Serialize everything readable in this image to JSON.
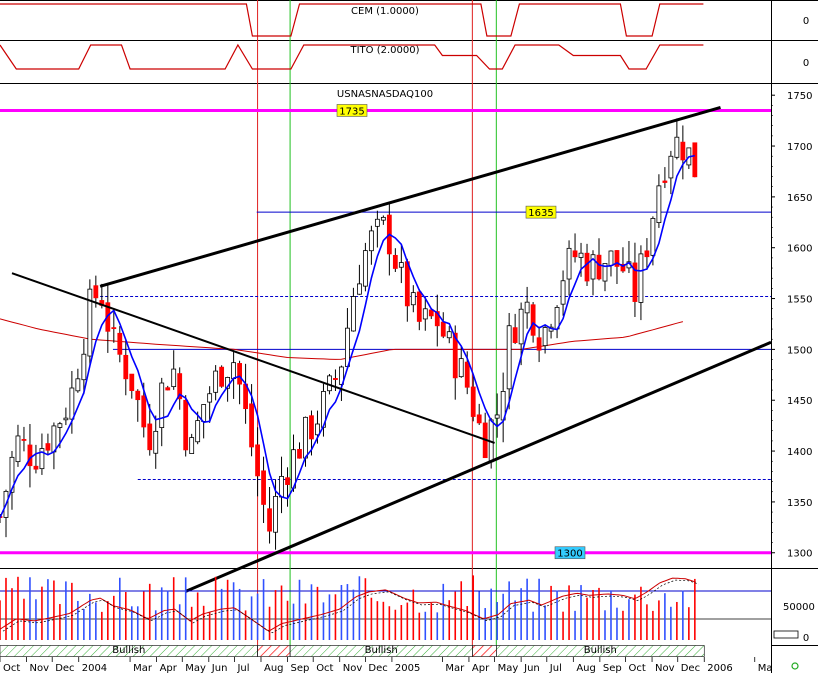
{
  "colors": {
    "background": "#ffffff",
    "up_candle": "#ffffff",
    "down_candle": "#ff0000",
    "ma_short": "#0000ff",
    "ma_long": "#cc0000",
    "indicator_line": "#cc0000",
    "magenta_level": "#ff00ff",
    "blue_level": "#0000cc",
    "vline_red": "#e02020",
    "vline_green": "#20c020",
    "trend_line": "#000000",
    "level_label_yellow": "#ffff00",
    "level_label_cyan": "#33ccff",
    "bullish_fill": "#ffffff",
    "bearish_hatch": "#ff0000"
  },
  "chart_data": [
    {
      "type": "line",
      "title": "CEM (1.0000)",
      "yticks": [
        0
      ],
      "ylim": [
        -1,
        1
      ],
      "series": [
        {
          "name": "CEM",
          "x": [
            "2003-10-01",
            "2004-07-15",
            "2004-07-22",
            "2004-09-05",
            "2004-09-15",
            "2005-04-15",
            "2005-04-22",
            "2005-05-20",
            "2005-05-30",
            "2005-09-25",
            "2005-10-02",
            "2005-11-01",
            "2005-11-10",
            "2005-12-31"
          ],
          "values": [
            1,
            1,
            -1,
            -1,
            1,
            1,
            -1,
            -1,
            1,
            1,
            -1,
            -1,
            1,
            1
          ]
        }
      ]
    },
    {
      "type": "line",
      "title": "TITO (2.0000)",
      "yticks": [
        0
      ],
      "ylim": [
        -1,
        1
      ],
      "series": [
        {
          "name": "TITO",
          "x": [
            "2003-10-01",
            "2003-10-20",
            "2003-11-01",
            "2004-01-01",
            "2004-01-15",
            "2004-02-20",
            "2004-03-01",
            "2004-06-20",
            "2004-07-05",
            "2004-07-22",
            "2004-09-05",
            "2004-09-20",
            "2004-10-10",
            "2005-02-20",
            "2005-03-01",
            "2005-04-10",
            "2005-04-25",
            "2005-05-10",
            "2005-05-25",
            "2005-07-15",
            "2005-08-01",
            "2005-09-25",
            "2005-10-05",
            "2005-10-25",
            "2005-11-10",
            "2005-12-31"
          ],
          "values": [
            1,
            -0.6,
            -0.6,
            -0.6,
            1,
            1,
            -0.6,
            -0.6,
            1,
            -0.6,
            -0.6,
            1,
            1,
            1,
            0.3,
            0.3,
            -0.6,
            -0.6,
            1,
            1,
            0.3,
            0.3,
            -0.6,
            -0.6,
            1,
            1
          ]
        }
      ]
    },
    {
      "type": "line",
      "title": "USNASNASDAQ100",
      "yticks": [
        1300,
        1350,
        1400,
        1450,
        1500,
        1550,
        1600,
        1650,
        1700,
        1750
      ],
      "ylim": [
        1285,
        1762
      ],
      "date_range": [
        "2003-10-01",
        "2006-03-20"
      ],
      "xlabels": [
        {
          "date": "2003-10-01",
          "label": "Oct"
        },
        {
          "date": "2003-11-01",
          "label": "Nov"
        },
        {
          "date": "2003-12-01",
          "label": "Dec"
        },
        {
          "date": "2004-01-01",
          "label": "2004"
        },
        {
          "date": "2004-03-01",
          "label": "Mar"
        },
        {
          "date": "2004-04-01",
          "label": "Apr"
        },
        {
          "date": "2004-05-01",
          "label": "May"
        },
        {
          "date": "2004-06-01",
          "label": "Jun"
        },
        {
          "date": "2004-07-01",
          "label": "Jul"
        },
        {
          "date": "2004-08-01",
          "label": "Aug"
        },
        {
          "date": "2004-09-01",
          "label": "Sep"
        },
        {
          "date": "2004-10-01",
          "label": "Oct"
        },
        {
          "date": "2004-11-01",
          "label": "Nov"
        },
        {
          "date": "2004-12-01",
          "label": "Dec"
        },
        {
          "date": "2005-01-01",
          "label": "2005"
        },
        {
          "date": "2005-03-01",
          "label": "Mar"
        },
        {
          "date": "2005-04-01",
          "label": "Apr"
        },
        {
          "date": "2005-05-01",
          "label": "May"
        },
        {
          "date": "2005-06-01",
          "label": "Jun"
        },
        {
          "date": "2005-07-01",
          "label": "Jul"
        },
        {
          "date": "2005-08-01",
          "label": "Aug"
        },
        {
          "date": "2005-09-01",
          "label": "Sep"
        },
        {
          "date": "2005-10-01",
          "label": "Oct"
        },
        {
          "date": "2005-11-01",
          "label": "Nov"
        },
        {
          "date": "2005-12-01",
          "label": "Dec"
        },
        {
          "date": "2006-01-01",
          "label": "2006"
        },
        {
          "date": "2006-03-01",
          "label": "Ma"
        }
      ],
      "price_anchors": [
        [
          "2003-10-01",
          1335
        ],
        [
          "2003-10-20",
          1410
        ],
        [
          "2003-11-10",
          1395
        ],
        [
          "2003-12-01",
          1420
        ],
        [
          "2003-12-22",
          1450
        ],
        [
          "2004-01-15",
          1545
        ],
        [
          "2004-01-26",
          1560
        ],
        [
          "2004-02-10",
          1505
        ],
        [
          "2004-03-01",
          1475
        ],
        [
          "2004-03-22",
          1410
        ],
        [
          "2004-04-10",
          1470
        ],
        [
          "2004-04-22",
          1480
        ],
        [
          "2004-05-10",
          1395
        ],
        [
          "2004-05-25",
          1445
        ],
        [
          "2004-06-15",
          1480
        ],
        [
          "2004-07-01",
          1490
        ],
        [
          "2004-07-20",
          1410
        ],
        [
          "2004-08-10",
          1320
        ],
        [
          "2004-08-25",
          1375
        ],
        [
          "2004-09-15",
          1405
        ],
        [
          "2004-10-10",
          1440
        ],
        [
          "2004-11-01",
          1480
        ],
        [
          "2004-11-20",
          1570
        ],
        [
          "2004-12-05",
          1605
        ],
        [
          "2004-12-25",
          1620
        ],
        [
          "2005-01-15",
          1560
        ],
        [
          "2005-02-01",
          1525
        ],
        [
          "2005-02-22",
          1530
        ],
        [
          "2005-03-10",
          1500
        ],
        [
          "2005-03-28",
          1470
        ],
        [
          "2005-04-18",
          1410
        ],
        [
          "2005-05-05",
          1440
        ],
        [
          "2005-05-20",
          1520
        ],
        [
          "2005-06-10",
          1545
        ],
        [
          "2005-06-25",
          1510
        ],
        [
          "2005-07-20",
          1575
        ],
        [
          "2005-08-05",
          1595
        ],
        [
          "2005-08-20",
          1580
        ],
        [
          "2005-09-10",
          1590
        ],
        [
          "2005-09-28",
          1580
        ],
        [
          "2005-10-12",
          1555
        ],
        [
          "2005-10-25",
          1600
        ],
        [
          "2005-11-10",
          1670
        ],
        [
          "2005-11-25",
          1705
        ],
        [
          "2005-12-10",
          1700
        ],
        [
          "2005-12-25",
          1670
        ]
      ],
      "moving_average_long": [
        [
          "2003-10-01",
          1530
        ],
        [
          "2003-11-15",
          1520
        ],
        [
          "2004-01-15",
          1510
        ],
        [
          "2004-04-01",
          1505
        ],
        [
          "2004-07-01",
          1500
        ],
        [
          "2004-09-01",
          1492
        ],
        [
          "2004-11-01",
          1490
        ],
        [
          "2005-01-01",
          1500
        ],
        [
          "2005-03-01",
          1500
        ],
        [
          "2005-06-01",
          1500
        ],
        [
          "2005-08-01",
          1508
        ],
        [
          "2005-10-01",
          1512
        ],
        [
          "2005-12-10",
          1528
        ]
      ],
      "levels": [
        {
          "value": 1735,
          "label": "1735",
          "color": "magenta",
          "width": "heavy"
        },
        {
          "value": 1300,
          "label": "1300",
          "color": "magenta",
          "width": "heavy"
        },
        {
          "value": 1635,
          "label": "1635",
          "color": "blue",
          "from": "2004-07-27"
        },
        {
          "value": 1500,
          "label": "",
          "color": "blue",
          "from": "2004-02-10"
        },
        {
          "value": 1552,
          "label": "",
          "color": "blue",
          "dashed": true,
          "from": "2004-01-26"
        },
        {
          "value": 1372,
          "label": "",
          "color": "blue",
          "dashed": true,
          "from": "2004-03-10"
        }
      ],
      "trend_lines": [
        {
          "from": [
            "2004-01-26",
            1562
          ],
          "to": [
            "2006-01-20",
            1738
          ]
        },
        {
          "from": [
            "2004-05-05",
            1262
          ],
          "to": [
            "2006-03-20",
            1507
          ]
        },
        {
          "from": [
            "2003-10-15",
            1575
          ],
          "to": [
            "2005-05-01",
            1408
          ]
        }
      ],
      "vertical_lines": [
        {
          "date": "2004-07-28",
          "color": "red"
        },
        {
          "date": "2004-09-04",
          "color": "green"
        },
        {
          "date": "2005-04-05",
          "color": "red"
        },
        {
          "date": "2005-05-03",
          "color": "green"
        }
      ]
    },
    {
      "type": "bar",
      "title": "",
      "yticks": [
        0,
        50000
      ],
      "ylim": [
        0,
        100000
      ],
      "note_bands": [
        {
          "start": "2003-10-01",
          "end": "2004-07-28",
          "label": "Bullish",
          "style": "plain"
        },
        {
          "start": "2004-07-28",
          "end": "2004-09-04",
          "label": "",
          "style": "hatch"
        },
        {
          "start": "2004-09-04",
          "end": "2005-04-05",
          "label": "Bullish",
          "style": "plain"
        },
        {
          "start": "2005-04-05",
          "end": "2005-05-03",
          "label": "",
          "style": "hatch"
        },
        {
          "start": "2005-05-03",
          "end": "2006-01-01",
          "label": "Bullish",
          "style": "plain"
        }
      ]
    }
  ]
}
